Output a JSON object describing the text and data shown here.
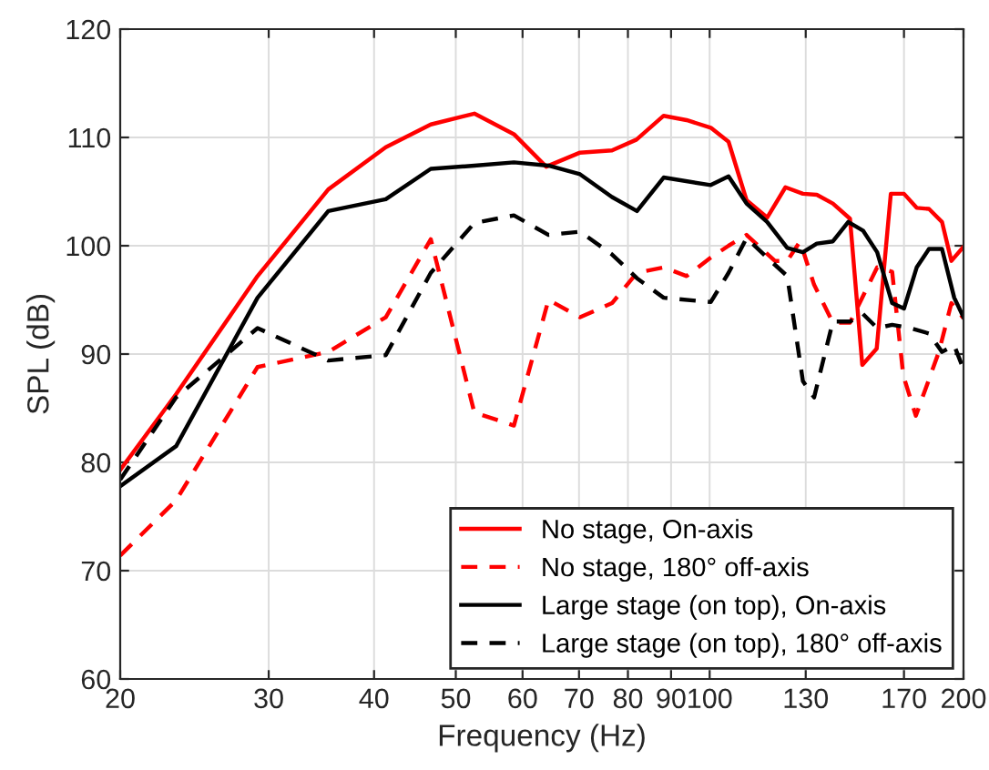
{
  "chart_data": {
    "type": "line",
    "xlabel": "Frequency (Hz)",
    "ylabel": "SPL (dB)",
    "log": "x",
    "xlim": [
      20,
      200
    ],
    "xticks": [
      20,
      30,
      40,
      50,
      60,
      70,
      80,
      90,
      100,
      130,
      170,
      200
    ],
    "ylim": [
      60,
      120
    ],
    "yticks": [
      60,
      70,
      80,
      90,
      100,
      110,
      120
    ],
    "grid": true,
    "legend": "bottom right",
    "series": [
      {
        "name": "No stage, On-axis",
        "color": "#ff0000",
        "line_style": "solid",
        "x": [
          20,
          23.3,
          29.1,
          35.3,
          41.3,
          46.7,
          52.6,
          58.6,
          64.0,
          70.2,
          76.6,
          81.9,
          88.2,
          93.9,
          100.3,
          105.3,
          110.6,
          117,
          123,
          129,
          134,
          140,
          146.7,
          151.7,
          157.8,
          164,
          170,
          176,
          182,
          188.6,
          193.5,
          200
        ],
        "values": [
          79.3,
          86.3,
          97.2,
          105.2,
          109.1,
          111.2,
          112.2,
          110.3,
          107.3,
          108.6,
          108.8,
          109.8,
          112.0,
          111.6,
          110.9,
          109.6,
          104.2,
          102.6,
          105.4,
          104.8,
          104.7,
          103.9,
          102.5,
          89.0,
          90.5,
          104.8,
          104.8,
          103.5,
          103.4,
          102.2,
          98.6,
          99.9
        ]
      },
      {
        "name": "No stage, 180° off-axis",
        "color": "#ff0000",
        "line_style": "dashed",
        "x": [
          20,
          23.3,
          29.1,
          35.3,
          41.3,
          46.7,
          52.6,
          58.6,
          64.4,
          70.2,
          76.6,
          82,
          88.2,
          93.9,
          100.3,
          105.3,
          110.6,
          119.5,
          123.6,
          128,
          133,
          140,
          146.7,
          158,
          164.6,
          169.7,
          175.6,
          187,
          193.5,
          200
        ],
        "values": [
          71.4,
          76.5,
          88.8,
          90.2,
          93.4,
          100.6,
          84.6,
          83.4,
          95.0,
          93.4,
          94.7,
          97.5,
          98.0,
          97.2,
          98.9,
          100.0,
          101.0,
          98.6,
          98.6,
          100.4,
          96.4,
          92.9,
          92.9,
          98.0,
          97.6,
          88.0,
          84.3,
          90.2,
          94.7,
          93.3
        ]
      },
      {
        "name": "Large stage (on top), On-axis",
        "color": "#000000",
        "line_style": "solid",
        "x": [
          20,
          23.3,
          29.1,
          35.3,
          41.3,
          46.7,
          52.6,
          58.6,
          64.4,
          70.2,
          76.6,
          82,
          88.2,
          100.3,
          105.3,
          110.6,
          117,
          123.6,
          129,
          134,
          140,
          146,
          152,
          158,
          164.6,
          170,
          176,
          182,
          188.6,
          195,
          200
        ],
        "values": [
          77.8,
          81.5,
          95.2,
          103.2,
          104.3,
          107.1,
          107.4,
          107.7,
          107.4,
          106.6,
          104.5,
          103.2,
          106.3,
          105.6,
          106.4,
          103.9,
          102.2,
          99.8,
          99.4,
          100.2,
          100.4,
          102.2,
          101.4,
          99.4,
          94.7,
          94.2,
          98.0,
          99.7,
          99.7,
          95.2,
          93.4
        ]
      },
      {
        "name": "Large stage (on top), 180° off-axis",
        "color": "#000000",
        "line_style": "dashed",
        "x": [
          20,
          23.3,
          29.1,
          35.3,
          41.3,
          46.7,
          52.6,
          58.6,
          64.4,
          70.2,
          76.6,
          82,
          88.2,
          100.3,
          105.3,
          110.6,
          117,
          123.6,
          129,
          133,
          140,
          146.7,
          152,
          158,
          164.6,
          173,
          182,
          188.6,
          195,
          200
        ],
        "values": [
          78.4,
          86.0,
          92.4,
          89.4,
          89.9,
          97.5,
          102.1,
          102.8,
          101.0,
          101.3,
          99.2,
          97.0,
          95.2,
          94.8,
          97.5,
          100.7,
          98.9,
          97.2,
          87.5,
          86.0,
          93.0,
          93.0,
          93.7,
          92.4,
          92.7,
          92.4,
          91.9,
          90.2,
          90.8,
          88.6
        ]
      }
    ]
  }
}
